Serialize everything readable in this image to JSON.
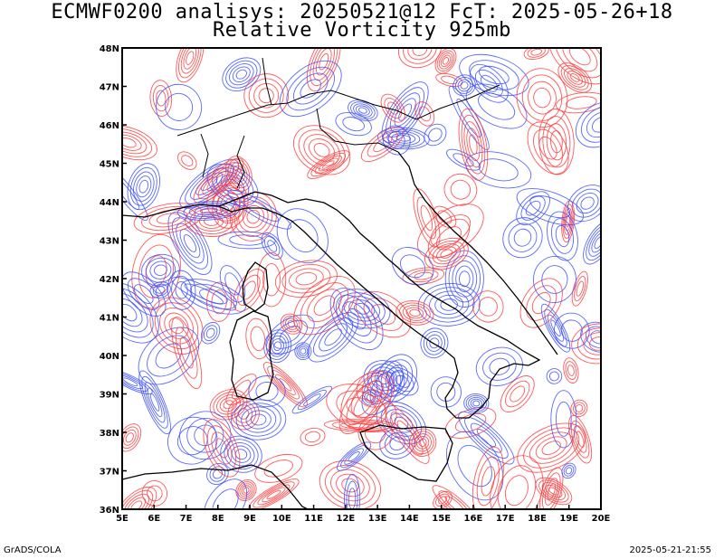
{
  "header": {
    "title_line1": "ECMWF0200 analisys: 20250521@12 FcT: 2025-05-26+18",
    "title_line2": "Relative Vorticity 925mb"
  },
  "map": {
    "lon_ticks": [
      "5E",
      "6E",
      "7E",
      "8E",
      "9E",
      "10E",
      "11E",
      "12E",
      "13E",
      "14E",
      "15E",
      "16E",
      "17E",
      "18E",
      "19E",
      "20E"
    ],
    "lat_ticks": [
      "48N",
      "47N",
      "46N",
      "45N",
      "44N",
      "43N",
      "42N",
      "41N",
      "40N",
      "39N",
      "38N",
      "37N",
      "36N"
    ],
    "lon_range": [
      5,
      20
    ],
    "lat_range": [
      36,
      48
    ],
    "positive_color": "#ff3c3c",
    "negative_color": "#3c50ff",
    "coastline_color": "#000000"
  },
  "footer": {
    "left": "GrADS/COLA",
    "right": "2025-05-21-21:55"
  }
}
